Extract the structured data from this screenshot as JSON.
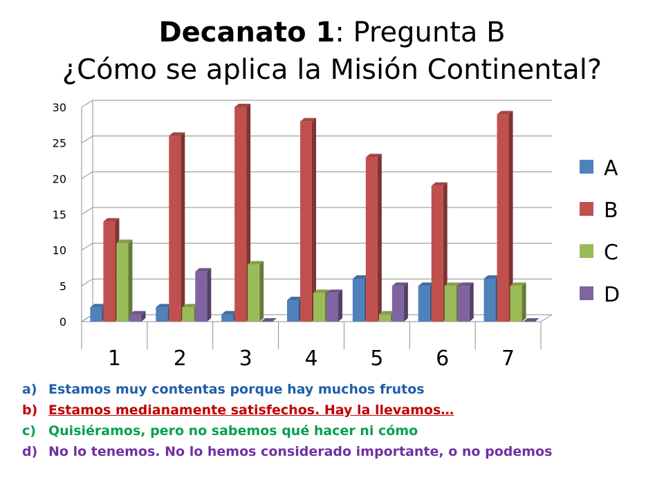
{
  "title": {
    "bold_part": "Decanato 1",
    "rest_part": ": Pregunta B",
    "line2": "¿Cómo se aplica la Misión Continental?"
  },
  "colors": {
    "A": "#4f81bd",
    "B": "#c0504d",
    "C": "#9bbb59",
    "D": "#8064a2",
    "note_a": "#1f5fa8",
    "note_b": "#c00000",
    "note_c": "#00a050",
    "note_d": "#7030a0"
  },
  "chart_data": {
    "type": "bar",
    "title": "",
    "xlabel": "",
    "ylabel": "",
    "categories": [
      "1",
      "2",
      "3",
      "4",
      "5",
      "6",
      "7"
    ],
    "ylim": [
      0,
      30
    ],
    "yticks": [
      0,
      5,
      10,
      15,
      20,
      25,
      30
    ],
    "grid": true,
    "legend_position": "right",
    "series": [
      {
        "name": "A",
        "values": [
          2,
          2,
          1,
          3,
          6,
          5,
          6
        ]
      },
      {
        "name": "B",
        "values": [
          14,
          26,
          30,
          28,
          23,
          19,
          29
        ]
      },
      {
        "name": "C",
        "values": [
          11,
          2,
          8,
          4,
          1,
          5,
          5
        ]
      },
      {
        "name": "D",
        "values": [
          1,
          7,
          0,
          4,
          5,
          5,
          0
        ]
      }
    ]
  },
  "notes": [
    {
      "letter": "a)",
      "text": "Estamos muy contentas porque hay muchos frutos"
    },
    {
      "letter": "b)",
      "text": "Estamos medianamente satisfechos. Hay la llevamos…"
    },
    {
      "letter": "c)",
      "text": "Quisiéramos, pero no sabemos qué hacer ni cómo"
    },
    {
      "letter": "d)",
      "text": "No lo tenemos. No lo hemos considerado importante, o no podemos"
    }
  ]
}
